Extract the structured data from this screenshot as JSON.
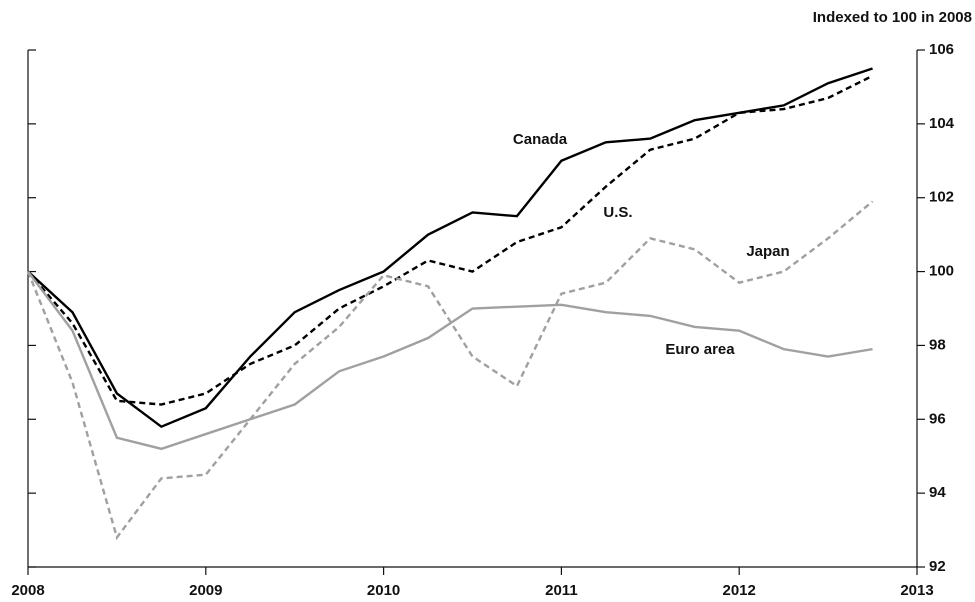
{
  "chart_data": {
    "type": "line",
    "annotation": "Indexed to 100 in 2008",
    "x": [
      2008,
      2008.25,
      2008.5,
      2008.75,
      2009,
      2009.25,
      2009.5,
      2009.75,
      2010,
      2010.25,
      2010.5,
      2010.75,
      2011,
      2011.25,
      2011.5,
      2011.75,
      2012,
      2012.25,
      2012.5,
      2012.75
    ],
    "series": [
      {
        "name": "Canada",
        "color": "#000000",
        "dashed": false,
        "values": [
          100,
          98.9,
          96.7,
          95.8,
          96.3,
          97.7,
          98.9,
          99.5,
          100,
          101.0,
          101.6,
          101.5,
          103.0,
          103.5,
          103.6,
          104.1,
          104.3,
          104.5,
          105.1,
          105.5
        ]
      },
      {
        "name": "U.S.",
        "color": "#000000",
        "dashed": true,
        "values": [
          100,
          98.6,
          96.5,
          96.4,
          96.7,
          97.5,
          98.0,
          99.0,
          99.6,
          100.3,
          100.0,
          100.8,
          101.2,
          102.3,
          103.3,
          103.6,
          104.3,
          104.4,
          104.7,
          105.3
        ]
      },
      {
        "name": "Japan",
        "color": "#a0a0a0",
        "dashed": true,
        "values": [
          100,
          97.0,
          92.8,
          94.4,
          94.5,
          96.0,
          97.5,
          98.5,
          99.9,
          99.6,
          97.7,
          96.9,
          99.4,
          99.7,
          100.9,
          100.6,
          99.7,
          100.0,
          100.9,
          101.9
        ]
      },
      {
        "name": "Euro area",
        "color": "#a0a0a0",
        "dashed": false,
        "values": [
          100,
          98.4,
          95.5,
          95.2,
          95.6,
          96.0,
          96.4,
          97.3,
          97.7,
          98.2,
          99.0,
          99.05,
          99.1,
          98.9,
          98.8,
          98.5,
          98.4,
          97.9,
          97.7,
          97.9
        ]
      }
    ],
    "xlim": [
      2008,
      2013
    ],
    "xticks": [
      2008,
      2009,
      2010,
      2011,
      2012,
      2013
    ],
    "ylim": [
      92,
      106
    ],
    "yticks": [
      92,
      94,
      96,
      98,
      100,
      102,
      104,
      106
    ],
    "y_axis_side": "right",
    "grid": false
  }
}
